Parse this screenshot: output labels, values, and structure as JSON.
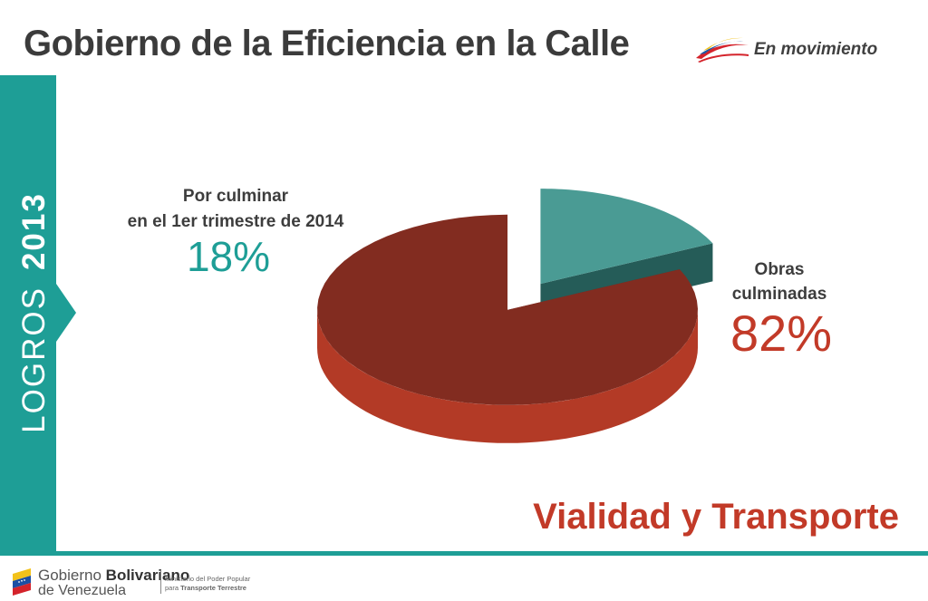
{
  "header": {
    "title": "Gobierno de la Eficiencia en la Calle",
    "brand_text": "En movimiento",
    "brand_logo_icon": "swoosh-logo"
  },
  "side_band": {
    "word": "LOGROS",
    "year": "2013",
    "color": "#1e9e96"
  },
  "chart_data": {
    "type": "pie",
    "style": "3d-exploded",
    "categories": [
      "Por culminar en el 1er trimestre de 2014",
      "Obras culminadas"
    ],
    "values": [
      18,
      82
    ],
    "unit": "%",
    "slices": [
      {
        "label_lines": [
          "Por culminar",
          "en el 1er trimestre de 2014"
        ],
        "value": 18,
        "value_label": "18%",
        "colors": {
          "top": "#4a9b94",
          "side": "#2c6b66",
          "cut": "#255c58",
          "value_text": "#1e9e96"
        }
      },
      {
        "label_lines": [
          "Obras",
          "culminadas"
        ],
        "value": 82,
        "value_label": "82%",
        "colors": {
          "top": "#822c20",
          "side": "#b33a26",
          "cut": "#6b2018",
          "value_text": "#c23a28"
        }
      }
    ]
  },
  "subtitle": "Vialidad y Transporte",
  "footer": {
    "gov_name_plain": "Gobierno ",
    "gov_name_bold": "Bolivariano",
    "gov_country": "de Venezuela",
    "ministry_line1": "Ministerio del Poder Popular",
    "ministry_line2_plain": "para ",
    "ministry_line2_bold": "Transporte Terrestre",
    "flag_logo_icon": "venezuela-flag-logo",
    "rule_color": "#1e9e96"
  }
}
